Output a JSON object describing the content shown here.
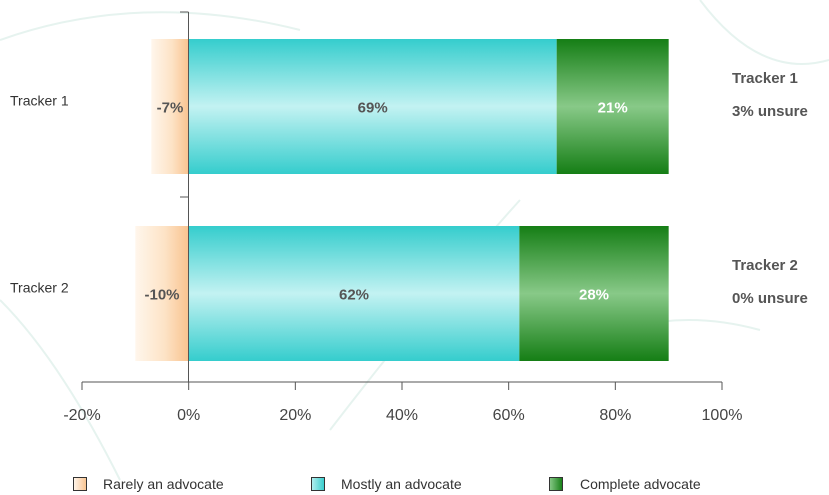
{
  "chart_data": {
    "type": "bar",
    "orientation": "horizontal",
    "stacked": true,
    "categories": [
      "Tracker 1",
      "Tracker 2"
    ],
    "series": [
      {
        "name": "Rarely an advocate",
        "values": [
          -7,
          -10
        ],
        "labels": [
          "-7%",
          "-10%"
        ],
        "color": "#f9c38f"
      },
      {
        "name": "Mostly an advocate",
        "values": [
          69,
          62
        ],
        "labels": [
          "69%",
          "62%"
        ],
        "color": "#35cdcd"
      },
      {
        "name": "Complete advocate",
        "values": [
          21,
          28
        ],
        "labels": [
          "21%",
          "28%"
        ],
        "color": "#1a8a1a"
      }
    ],
    "side_notes": [
      {
        "title": "Tracker 1",
        "note": "3% unsure"
      },
      {
        "title": "Tracker 2",
        "note": "0% unsure"
      }
    ],
    "x_ticks": [
      "-20%",
      "0%",
      "20%",
      "40%",
      "60%",
      "80%",
      "100%"
    ],
    "xlim": [
      -20,
      100
    ],
    "grid": false,
    "legend_position": "bottom",
    "title": "",
    "xlabel": "",
    "ylabel": ""
  }
}
